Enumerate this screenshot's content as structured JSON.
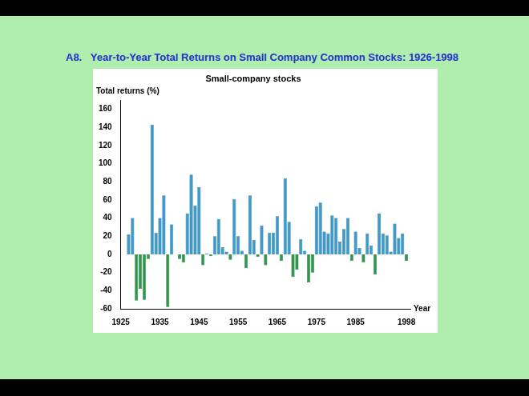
{
  "chart_data": {
    "type": "bar",
    "title": "A8.   Year-to-Year Total Returns on Small Company Common Stocks: 1926-1998",
    "subtitle": "Small-company stocks",
    "y_label": "Total returns (%)",
    "x_label": "Year",
    "x": [
      1926,
      1927,
      1928,
      1929,
      1930,
      1931,
      1932,
      1933,
      1934,
      1935,
      1936,
      1937,
      1938,
      1939,
      1940,
      1941,
      1942,
      1943,
      1944,
      1945,
      1946,
      1947,
      1948,
      1949,
      1950,
      1951,
      1952,
      1953,
      1954,
      1955,
      1956,
      1957,
      1958,
      1959,
      1960,
      1961,
      1962,
      1963,
      1964,
      1965,
      1966,
      1967,
      1968,
      1969,
      1970,
      1971,
      1972,
      1973,
      1974,
      1975,
      1976,
      1977,
      1978,
      1979,
      1980,
      1981,
      1982,
      1983,
      1984,
      1985,
      1986,
      1987,
      1988,
      1989,
      1990,
      1991,
      1992,
      1993,
      1994,
      1995,
      1996,
      1997,
      1998
    ],
    "values": [
      0,
      22,
      40,
      -51,
      -38,
      -50,
      -5,
      143,
      24,
      40,
      65,
      -58,
      33,
      0,
      -5,
      -9,
      45,
      88,
      54,
      74,
      -12,
      1,
      -2,
      20,
      39,
      8,
      3,
      -6,
      61,
      20,
      4,
      -15,
      65,
      16,
      -3,
      32,
      -12,
      24,
      24,
      42,
      -7,
      84,
      36,
      -25,
      -17,
      17,
      4,
      -31,
      -20,
      53,
      57,
      25,
      23,
      43,
      40,
      14,
      28,
      40,
      -7,
      25,
      7,
      -9,
      23,
      10,
      -22,
      45,
      23,
      21,
      3,
      34,
      18,
      23,
      -7
    ],
    "colors": [
      "#3a9ccc",
      "#3a9ccc",
      "#3a9ccc",
      "#2f9a44",
      "#2f9a44",
      "#2f9a44",
      "#2f9a44",
      "#3a9ccc",
      "#3a9ccc",
      "#3a9ccc",
      "#3a9ccc",
      "#2f9a44",
      "#3a9ccc",
      "#3a9ccc",
      "#2f9a44",
      "#2f9a44",
      "#3a9ccc",
      "#3a9ccc",
      "#3a9ccc",
      "#3a9ccc",
      "#2f9a44",
      "#3a9ccc",
      "#2f9a44",
      "#3a9ccc",
      "#3a9ccc",
      "#3a9ccc",
      "#3a9ccc",
      "#2f9a44",
      "#3a9ccc",
      "#3a9ccc",
      "#3a9ccc",
      "#2f9a44",
      "#3a9ccc",
      "#3a9ccc",
      "#2f9a44",
      "#3a9ccc",
      "#2f9a44",
      "#3a9ccc",
      "#3a9ccc",
      "#3a9ccc",
      "#2f9a44",
      "#3a9ccc",
      "#3a9ccc",
      "#2f9a44",
      "#2f9a44",
      "#3a9ccc",
      "#3a9ccc",
      "#2f9a44",
      "#2f9a44",
      "#3a9ccc",
      "#3a9ccc",
      "#3a9ccc",
      "#3a9ccc",
      "#3a9ccc",
      "#3a9ccc",
      "#3a9ccc",
      "#3a9ccc",
      "#3a9ccc",
      "#2f9a44",
      "#3a9ccc",
      "#3a9ccc",
      "#2f9a44",
      "#3a9ccc",
      "#3a9ccc",
      "#2f9a44",
      "#3a9ccc",
      "#3a9ccc",
      "#3a9ccc",
      "#3a9ccc",
      "#3a9ccc",
      "#3a9ccc",
      "#3a9ccc",
      "#2f9a44"
    ],
    "xlim": [
      1925,
      1999
    ],
    "xticks": [
      1925,
      1935,
      1945,
      1955,
      1965,
      1975,
      1985,
      1998
    ],
    "ylim": [
      -60,
      170
    ],
    "yticks": [
      -60,
      -40,
      -20,
      0,
      20,
      40,
      60,
      80,
      100,
      120,
      140,
      160
    ],
    "grid": false
  }
}
